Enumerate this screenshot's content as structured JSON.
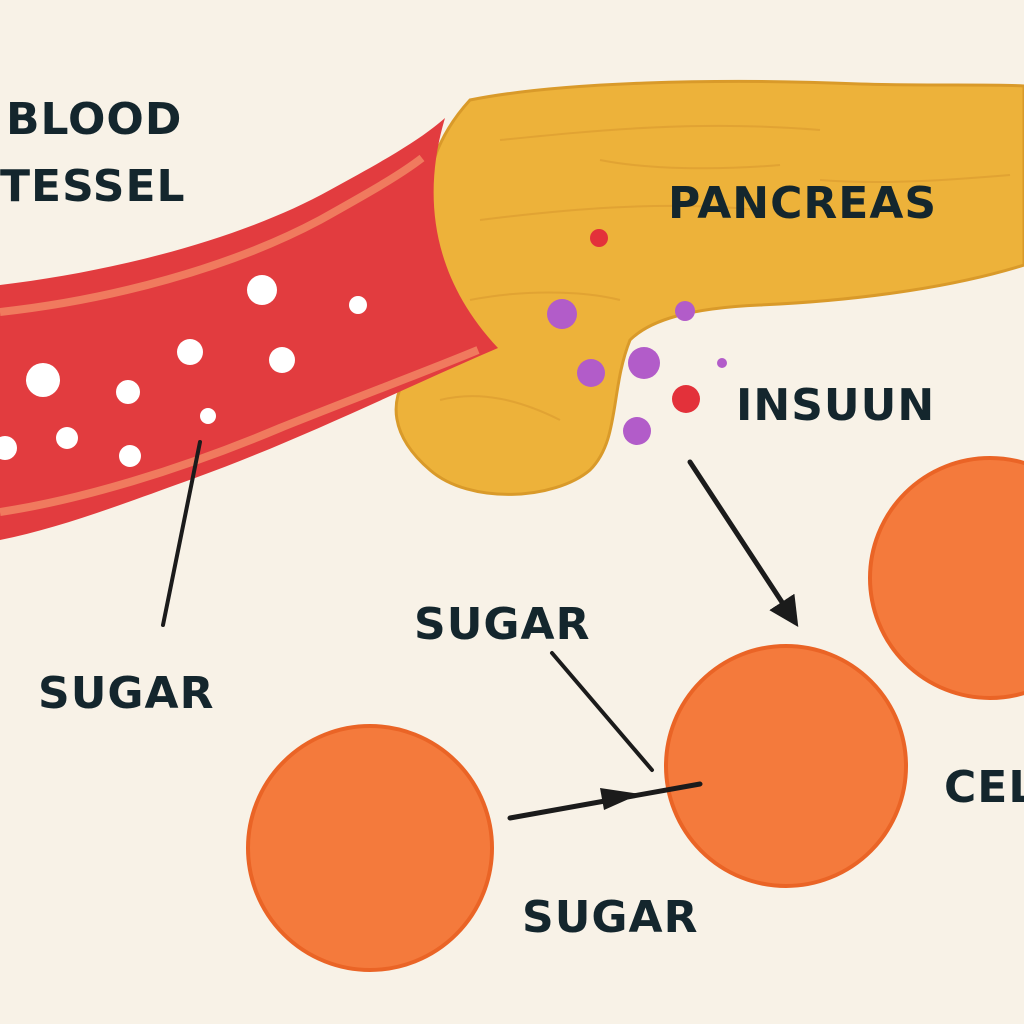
{
  "labels": {
    "blood_line1": "BLOOD",
    "blood_line2": "TESSEL",
    "pancreas": "PANCREAS",
    "insulin": "INSUUN",
    "sugar_left": "SUGAR",
    "sugar_middle": "SUGAR",
    "sugar_bottom": "SUGAR",
    "cell_partial": "CEL"
  },
  "colors": {
    "background": "#f8f2e7",
    "vessel": "#e23c3f",
    "vessel_stripe": "#f07a5e",
    "pancreas": "#edb23a",
    "cell": "#f47a3c",
    "insulin_particle": "#b25cc9",
    "red_particle": "#e3313a",
    "text": "#14262d",
    "arrow": "#1b1b1b"
  },
  "icons": {
    "sugar_particles": "white-dot-particles",
    "insulin_particles": "purple-dot-particles"
  }
}
